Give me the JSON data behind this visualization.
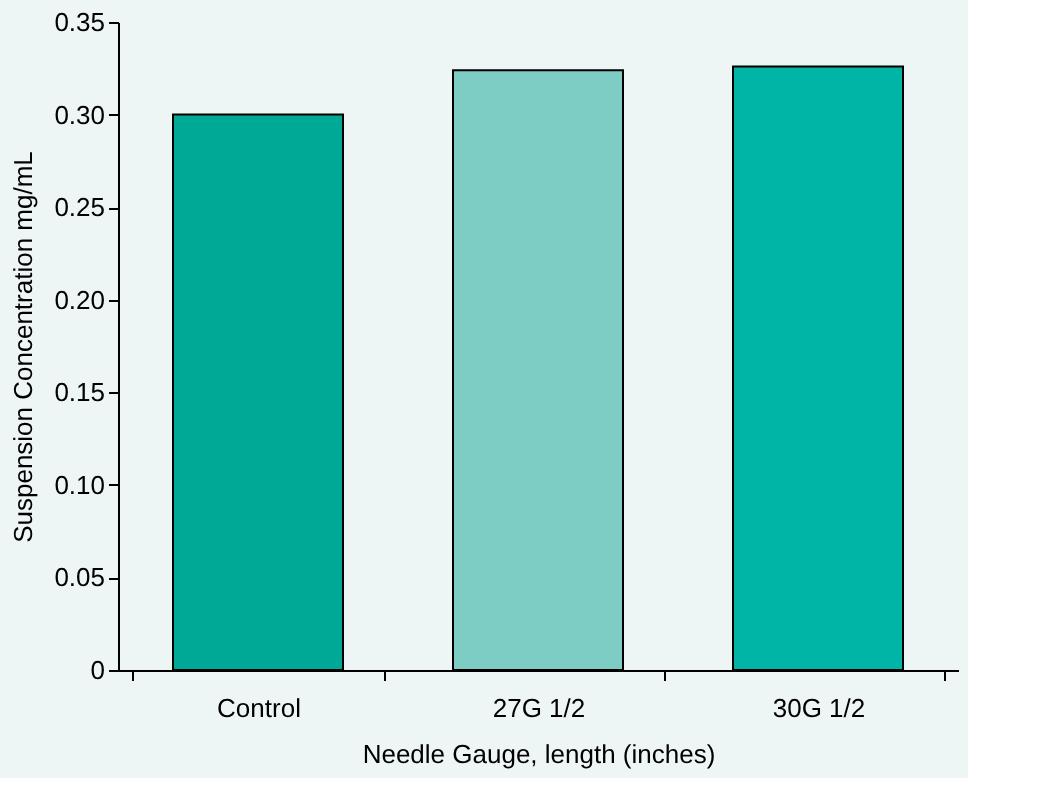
{
  "chart_data": {
    "type": "bar",
    "xlabel": "Needle Gauge, length (inches)",
    "ylabel": "Suspension Concentration mg/mL",
    "categories": [
      "Control",
      "27G 1/2",
      "30G 1/2"
    ],
    "values": [
      0.3,
      0.324,
      0.326
    ],
    "colors": [
      "#00a896",
      "#7ecdc4",
      "#00b5a6"
    ],
    "ylim": [
      0,
      0.35
    ],
    "yticks": [
      0,
      0.05,
      {
        "value": 0.1,
        "label": "0.10"
      },
      0.15,
      {
        "value": 0.2,
        "label": "0.20"
      },
      0.25,
      {
        "value": 0.3,
        "label": "0.30"
      },
      0.35
    ],
    "grid": false
  }
}
